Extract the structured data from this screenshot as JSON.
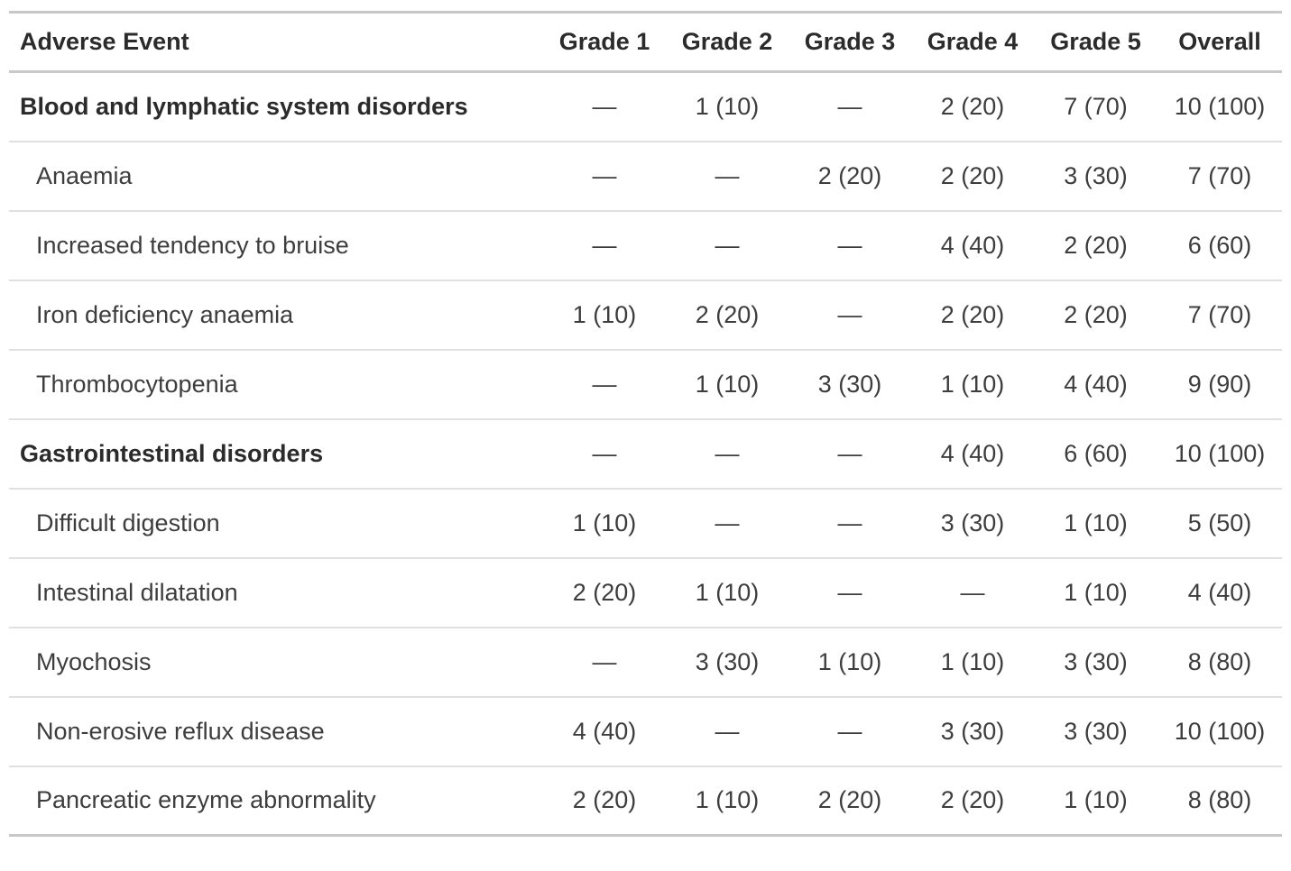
{
  "table": {
    "columns": [
      "Adverse Event",
      "Grade 1",
      "Grade 2",
      "Grade 3",
      "Grade 4",
      "Grade 5",
      "Overall"
    ],
    "empty_marker": "—",
    "rows": [
      {
        "label": "Blood and lymphatic system disorders",
        "type": "group",
        "values": [
          "—",
          "1 (10)",
          "—",
          "2 (20)",
          "7 (70)",
          "10 (100)"
        ]
      },
      {
        "label": "Anaemia",
        "type": "item",
        "values": [
          "—",
          "—",
          "2 (20)",
          "2 (20)",
          "3 (30)",
          "7 (70)"
        ]
      },
      {
        "label": "Increased tendency to bruise",
        "type": "item",
        "values": [
          "—",
          "—",
          "—",
          "4 (40)",
          "2 (20)",
          "6 (60)"
        ]
      },
      {
        "label": "Iron deficiency anaemia",
        "type": "item",
        "values": [
          "1 (10)",
          "2 (20)",
          "—",
          "2 (20)",
          "2 (20)",
          "7 (70)"
        ]
      },
      {
        "label": "Thrombocytopenia",
        "type": "item",
        "values": [
          "—",
          "1 (10)",
          "3 (30)",
          "1 (10)",
          "4 (40)",
          "9 (90)"
        ]
      },
      {
        "label": "Gastrointestinal disorders",
        "type": "group",
        "values": [
          "—",
          "—",
          "—",
          "4 (40)",
          "6 (60)",
          "10 (100)"
        ]
      },
      {
        "label": "Difficult digestion",
        "type": "item",
        "values": [
          "1 (10)",
          "—",
          "—",
          "3 (30)",
          "1 (10)",
          "5 (50)"
        ]
      },
      {
        "label": "Intestinal dilatation",
        "type": "item",
        "values": [
          "2 (20)",
          "1 (10)",
          "—",
          "—",
          "1 (10)",
          "4 (40)"
        ]
      },
      {
        "label": "Myochosis",
        "type": "item",
        "values": [
          "—",
          "3 (30)",
          "1 (10)",
          "1 (10)",
          "3 (30)",
          "8 (80)"
        ]
      },
      {
        "label": "Non-erosive reflux disease",
        "type": "item",
        "values": [
          "4 (40)",
          "—",
          "—",
          "3 (30)",
          "3 (30)",
          "10 (100)"
        ]
      },
      {
        "label": "Pancreatic enzyme abnormality",
        "type": "item",
        "values": [
          "2 (20)",
          "1 (10)",
          "2 (20)",
          "2 (20)",
          "1 (10)",
          "8 (80)"
        ]
      }
    ],
    "colors": {
      "background": "#ffffff",
      "border_strong": "#c8c8c8",
      "border_light": "#e0e0e0",
      "text": "#3d3d3d",
      "text_bold": "#2b2b2b"
    }
  }
}
